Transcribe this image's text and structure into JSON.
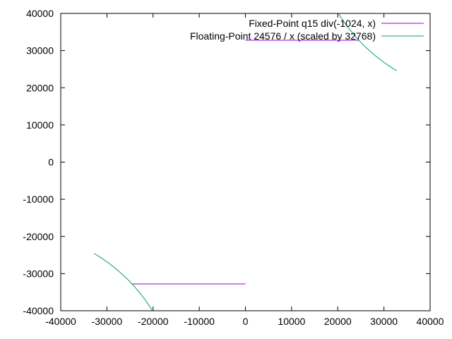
{
  "chart_data": {
    "type": "line",
    "title": "",
    "xlabel": "",
    "ylabel": "",
    "xlim": [
      -40000,
      40000
    ],
    "ylim": [
      -40000,
      40000
    ],
    "x_ticks": [
      -40000,
      -30000,
      -20000,
      -10000,
      0,
      10000,
      20000,
      30000,
      40000
    ],
    "y_ticks": [
      -40000,
      -30000,
      -20000,
      -10000,
      0,
      10000,
      20000,
      30000,
      40000
    ],
    "x_tick_labels": [
      "-40000",
      "-30000",
      "-20000",
      "-10000",
      "0",
      "10000",
      "20000",
      "30000",
      "40000"
    ],
    "y_tick_labels": [
      "-40000",
      "-30000",
      "-20000",
      "-10000",
      "0",
      "10000",
      "20000",
      "30000",
      "40000"
    ],
    "grid": false,
    "legend_position": "top-right",
    "series": [
      {
        "name": "Fixed-Point q15 div(-1024, x)",
        "color": "#9400d3",
        "segments": [
          [
            [
              -24576,
              -32768
            ],
            [
              -1,
              -32768
            ]
          ],
          [
            [
              1,
              32768
            ],
            [
              24576,
              32768
            ]
          ]
        ]
      },
      {
        "name": "Floating-Point 24576 / x (scaled by 32768)",
        "color": "#009e73",
        "function": "24576 * 32768 / x",
        "numerator": 805306368,
        "domain_segments": [
          [
            -32768,
            -20132
          ],
          [
            20132,
            32767
          ]
        ]
      }
    ]
  }
}
